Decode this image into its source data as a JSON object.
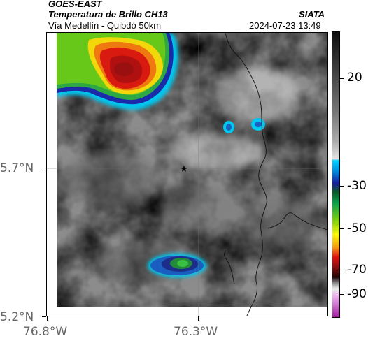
{
  "header": {
    "satellite": "GOES-EAST",
    "product": "Temperatura de Brillo CH13",
    "organization": "SIATA",
    "region": "Vía Medellín - Quibdó 50km",
    "datetime": "2024-07-23 13:49"
  },
  "map": {
    "lat_ticks": [
      "5.7°N",
      "5.2°N"
    ],
    "lon_ticks": [
      "76.8°W",
      "76.3°W"
    ],
    "marker_symbol": "★"
  },
  "colorbar": {
    "labels": [
      "20",
      "-30",
      "-50",
      "-70",
      "-90"
    ]
  },
  "colors": {
    "frame": "#000000",
    "axis_text": "#666666"
  }
}
